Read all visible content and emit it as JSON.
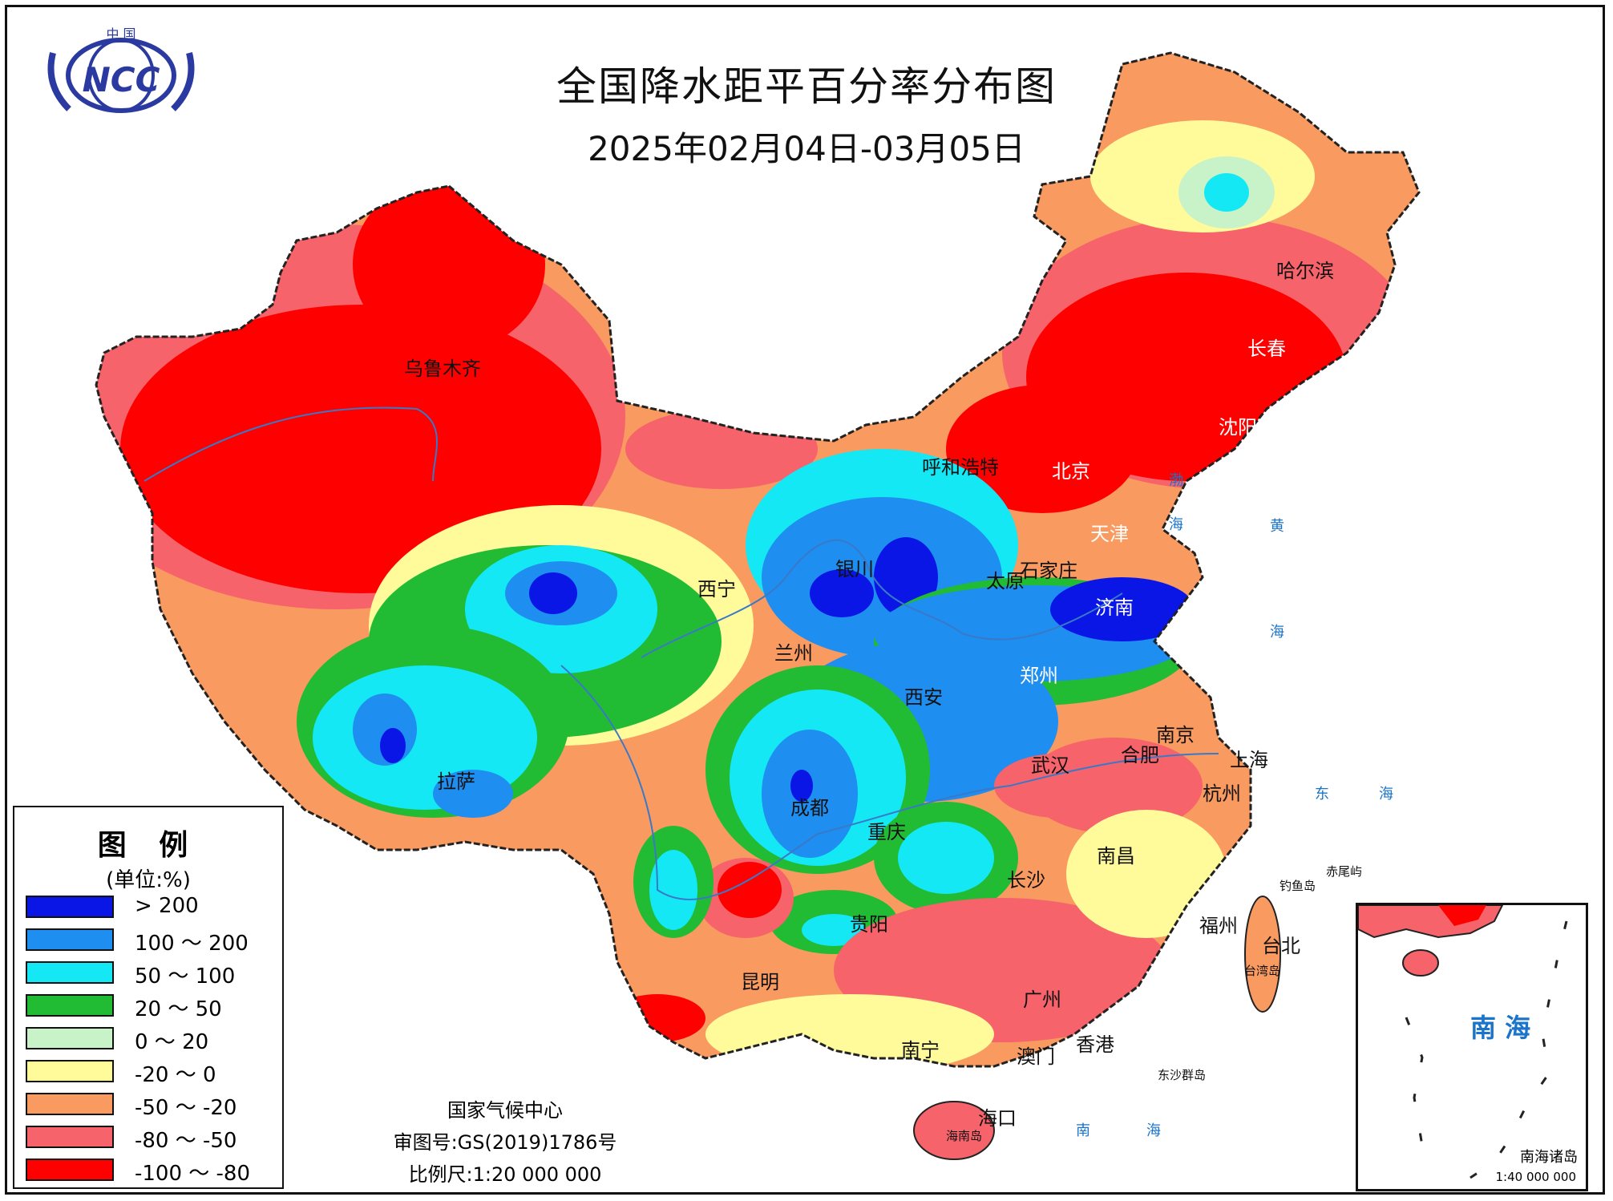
{
  "title": "全国降水距平百分率分布图",
  "date_range": "2025年02月04日-03月05日",
  "logo": {
    "text_top": "中 国",
    "text_main": "NCC",
    "icon": "ncc-globe-logo"
  },
  "colors": {
    "gt200": "#0a16e6",
    "100_200": "#1e8ef0",
    "50_100": "#14e8f4",
    "20_50": "#22bb34",
    "0_20": "#c8f2c8",
    "m20_0": "#fffb9a",
    "m50_m20": "#f99a60",
    "m80_m50": "#f6636a",
    "m100_m80": "#ff0000",
    "sea_text": "#1a74c9"
  },
  "legend": {
    "title": "图 例",
    "unit": "(单位:%)",
    "items": [
      {
        "label": "> 200",
        "color": "#0a16e6"
      },
      {
        "label": "100 ～ 200",
        "color": "#1e8ef0"
      },
      {
        "label": "50 ～ 100",
        "color": "#14e8f4"
      },
      {
        "label": "20 ～ 50",
        "color": "#22bb34"
      },
      {
        "label": "0 ～ 20",
        "color": "#c8f2c8"
      },
      {
        "label": "-20 ～ 0",
        "color": "#fffb9a"
      },
      {
        "label": "-50 ～ -20",
        "color": "#f99a60"
      },
      {
        "label": "-80 ～ -50",
        "color": "#f6636a"
      },
      {
        "label": "-100 ～ -80",
        "color": "#ff0000"
      }
    ]
  },
  "cities": {
    "urumqi": "乌鲁木齐",
    "hohhot": "呼和浩特",
    "beijing": "北京",
    "tianjin": "天津",
    "harbin": "哈尔滨",
    "changchun": "长春",
    "shenyang": "沈阳",
    "shijiazhuang": "石家庄",
    "taiyuan": "太原",
    "jinan": "济南",
    "yinchuan": "银川",
    "xining": "西宁",
    "lanzhou": "兰州",
    "zhengzhou": "郑州",
    "xian": "西安",
    "nanjing": "南京",
    "hefei": "合肥",
    "shanghai": "上海",
    "wuhan": "武汉",
    "hangzhou": "杭州",
    "lhasa": "拉萨",
    "chengdu": "成都",
    "chongqing": "重庆",
    "nanchang": "南昌",
    "changsha": "长沙",
    "guiyang": "贵阳",
    "fuzhou": "福州",
    "taipei": "台北",
    "kunming": "昆明",
    "guangzhou": "广州",
    "nanning": "南宁",
    "macau": "澳门",
    "hongkong": "香港",
    "haikou": "海口"
  },
  "places": {
    "taiwan_island": "台湾岛",
    "diaoyu": "钓鱼岛",
    "chiwei": "赤尾屿",
    "dongsha": "东沙群岛",
    "hainan_island": "海南岛"
  },
  "seas": {
    "bohai_1": "渤",
    "bohai_2": "海",
    "yellow_1": "黄",
    "yellow_2": "海",
    "east_1": "东",
    "east_2": "海",
    "south_1": "南",
    "south_2": "海"
  },
  "footer": {
    "org": "国家气候中心",
    "review_no": "审图号:GS(2019)1786号",
    "scale": "比例尺:1:20 000 000"
  },
  "inset": {
    "sea": "南 海",
    "name": "南海诸岛",
    "scale": "1:40 000 000"
  }
}
